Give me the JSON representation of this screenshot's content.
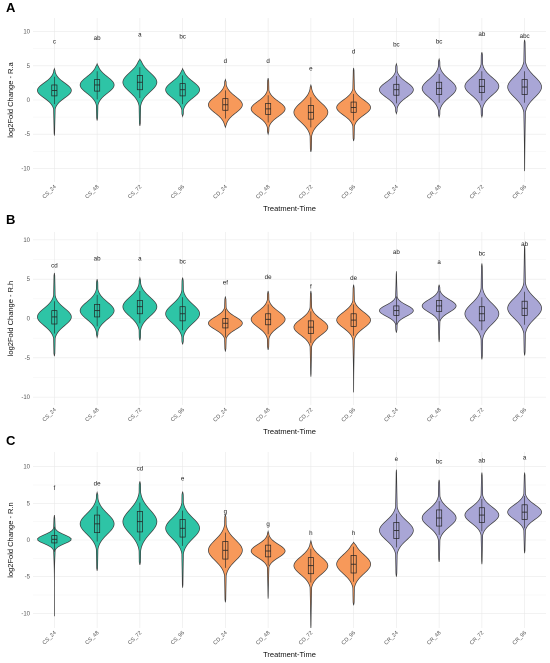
{
  "colors": {
    "CS": "#2ec4a6",
    "CD": "#f7995a",
    "CR": "#a9a6d6",
    "outline": "#3a3a3a"
  },
  "chart_data": [
    {
      "type": "violin",
      "panel": "A",
      "xlabel": "Treatment-Time",
      "ylabel": "log2Fold Change - R.a",
      "ylim": [
        -12,
        12
      ],
      "yticks": [
        -10,
        -5,
        0,
        5,
        10
      ],
      "grid": true,
      "categories": [
        "CS_24",
        "CS_48",
        "CS_72",
        "CS_96",
        "CD_24",
        "CD_48",
        "CD_72",
        "CD_96",
        "CR_24",
        "CR_48",
        "CR_72",
        "CR_96"
      ],
      "groups": [
        "CS",
        "CS",
        "CS",
        "CS",
        "CD",
        "CD",
        "CD",
        "CD",
        "CR",
        "CR",
        "CR",
        "CR"
      ],
      "medians": [
        1.4,
        2.2,
        2.6,
        1.5,
        -0.7,
        -1.3,
        -1.8,
        -1.1,
        1.5,
        1.7,
        2.0,
        1.9
      ],
      "q1": [
        0.6,
        1.3,
        1.5,
        0.6,
        -1.5,
        -2.1,
        -2.8,
        -1.8,
        0.7,
        0.8,
        1.1,
        0.8
      ],
      "q3": [
        2.2,
        3.0,
        3.6,
        2.4,
        0.2,
        -0.5,
        -0.8,
        -0.3,
        2.3,
        2.6,
        3.0,
        3.0
      ],
      "min": [
        -5.2,
        -3.0,
        -3.8,
        -2.4,
        -4.0,
        -5.0,
        -7.6,
        -6.0,
        -2.0,
        -2.5,
        -2.5,
        -10.4
      ],
      "max": [
        4.6,
        5.3,
        6.0,
        4.6,
        3.0,
        3.2,
        2.2,
        4.7,
        5.3,
        6.0,
        7.0,
        8.8
      ],
      "spread": [
        1.1,
        1.2,
        1.4,
        1.2,
        1.2,
        1.1,
        1.4,
        1.1,
        1.1,
        1.3,
        1.3,
        1.5
      ],
      "letters": [
        "c",
        "ab",
        "a",
        "bc",
        "d",
        "d",
        "e",
        "d",
        "bc",
        "bc",
        "ab",
        "abc"
      ],
      "letter_y": [
        8.3,
        8.8,
        9.3,
        9.0,
        5.4,
        5.4,
        4.3,
        6.8,
        7.8,
        8.3,
        9.4,
        9.1
      ]
    },
    {
      "type": "violin",
      "panel": "B",
      "xlabel": "Treatment-Time",
      "ylabel": "log2Fold Change - R.h",
      "ylim": [
        -11,
        11
      ],
      "yticks": [
        -10,
        -5,
        0,
        5,
        10
      ],
      "grid": true,
      "categories": [
        "CS_24",
        "CS_48",
        "CS_72",
        "CS_96",
        "CD_24",
        "CD_48",
        "CD_72",
        "CD_96",
        "CR_24",
        "CR_48",
        "CR_72",
        "CR_96"
      ],
      "groups": [
        "CS",
        "CS",
        "CS",
        "CS",
        "CD",
        "CD",
        "CD",
        "CD",
        "CR",
        "CR",
        "CR",
        "CR"
      ],
      "medians": [
        0.2,
        1.0,
        1.5,
        0.6,
        -0.6,
        -0.1,
        -1.1,
        -0.2,
        1.0,
        1.6,
        0.6,
        1.3
      ],
      "q1": [
        -0.7,
        0.2,
        0.6,
        -0.3,
        -1.2,
        -0.8,
        -1.9,
        -1.0,
        0.4,
        0.9,
        -0.3,
        0.4
      ],
      "q3": [
        1.0,
        1.8,
        2.3,
        1.5,
        0.0,
        0.6,
        -0.3,
        0.6,
        1.6,
        2.3,
        1.5,
        2.2
      ],
      "min": [
        -4.8,
        -2.4,
        -2.8,
        -3.3,
        -4.2,
        -4.0,
        -7.4,
        -9.4,
        -1.8,
        -3.0,
        -5.2,
        -4.7
      ],
      "max": [
        5.8,
        5.0,
        5.2,
        5.2,
        2.8,
        3.5,
        3.5,
        4.3,
        6.0,
        4.3,
        7.0,
        9.3
      ],
      "spread": [
        1.1,
        1.1,
        1.2,
        1.2,
        0.8,
        1.0,
        1.0,
        1.0,
        0.7,
        0.8,
        1.3,
        1.3
      ],
      "letters": [
        "cd",
        "ab",
        "a",
        "bc",
        "ef",
        "de",
        "f",
        "de",
        "ab",
        "a",
        "bc",
        "ab"
      ],
      "letter_y": [
        6.5,
        7.4,
        7.4,
        7.0,
        4.3,
        5.0,
        3.8,
        4.9,
        8.2,
        6.9,
        8.0,
        9.2
      ]
    },
    {
      "type": "violin",
      "panel": "C",
      "xlabel": "Treatment-Time",
      "ylabel": "log2Fold Change - R.n",
      "ylim": [
        -12,
        12
      ],
      "yticks": [
        -10,
        -5,
        0,
        5,
        10
      ],
      "grid": true,
      "categories": [
        "CS_24",
        "CS_48",
        "CS_72",
        "CS_96",
        "CD_24",
        "CD_48",
        "CD_72",
        "CD_96",
        "CR_24",
        "CR_48",
        "CR_72",
        "CR_96"
      ],
      "groups": [
        "CS",
        "CS",
        "CS",
        "CS",
        "CD",
        "CD",
        "CD",
        "CD",
        "CR",
        "CR",
        "CR",
        "CR"
      ],
      "medians": [
        0.1,
        2.2,
        2.5,
        1.6,
        -1.4,
        -1.5,
        -3.5,
        -3.3,
        1.3,
        3.0,
        3.4,
        3.8
      ],
      "q1": [
        -0.4,
        1.0,
        1.1,
        0.4,
        -2.6,
        -2.3,
        -4.6,
        -4.5,
        0.2,
        1.9,
        2.4,
        2.8
      ],
      "q3": [
        0.6,
        3.4,
        3.9,
        2.8,
        -0.2,
        -0.7,
        -2.4,
        -2.1,
        2.4,
        4.1,
        4.4,
        4.8
      ],
      "min": [
        -10.4,
        -4.2,
        -3.4,
        -6.5,
        -8.5,
        -8.0,
        -12.0,
        -8.9,
        -5.0,
        -3.0,
        -3.3,
        -1.8
      ],
      "max": [
        3.4,
        6.5,
        8.0,
        6.6,
        3.5,
        1.2,
        -0.1,
        -0.3,
        9.6,
        8.2,
        9.2,
        9.2
      ],
      "spread": [
        0.6,
        1.4,
        1.6,
        1.4,
        1.4,
        0.9,
        1.2,
        1.3,
        1.3,
        1.2,
        1.1,
        1.0
      ],
      "letters": [
        "f",
        "de",
        "cd",
        "e",
        "g",
        "g",
        "h",
        "h",
        "e",
        "bc",
        "ab",
        "a"
      ],
      "letter_y": [
        6.8,
        7.4,
        9.5,
        8.1,
        3.6,
        1.9,
        0.7,
        0.7,
        10.8,
        10.4,
        10.6,
        11.0
      ]
    }
  ]
}
